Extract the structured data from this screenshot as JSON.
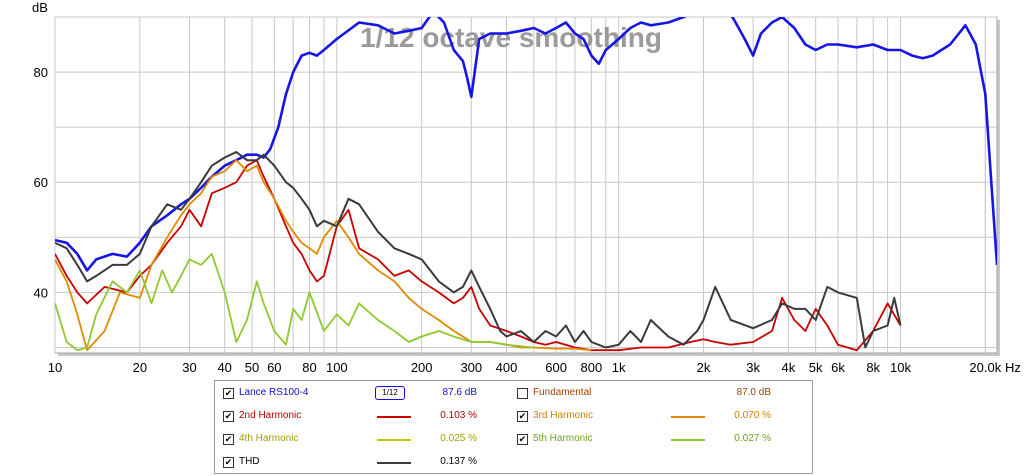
{
  "chart_data": {
    "type": "line",
    "title": "1/12 octave smoothing",
    "ylabel": "dB",
    "xlabel_unit": "Hz",
    "xscale": "log",
    "xlim": [
      10,
      22000
    ],
    "ylim": [
      29,
      90
    ],
    "y_ticks": [
      40,
      60,
      80
    ],
    "x_ticks": [
      {
        "v": 10,
        "t": "10"
      },
      {
        "v": 20,
        "t": "20"
      },
      {
        "v": 30,
        "t": "30"
      },
      {
        "v": 40,
        "t": "40"
      },
      {
        "v": 50,
        "t": "50"
      },
      {
        "v": 60,
        "t": "60"
      },
      {
        "v": 80,
        "t": "80"
      },
      {
        "v": 100,
        "t": "100"
      },
      {
        "v": 200,
        "t": "200"
      },
      {
        "v": 300,
        "t": "300"
      },
      {
        "v": 400,
        "t": "400"
      },
      {
        "v": 600,
        "t": "600"
      },
      {
        "v": 800,
        "t": "800"
      },
      {
        "v": 1000,
        "t": "1k"
      },
      {
        "v": 2000,
        "t": "2k"
      },
      {
        "v": 3000,
        "t": "3k"
      },
      {
        "v": 4000,
        "t": "4k"
      },
      {
        "v": 5000,
        "t": "5k"
      },
      {
        "v": 6000,
        "t": "6k"
      },
      {
        "v": 8000,
        "t": "8k"
      },
      {
        "v": 10000,
        "t": "10k"
      },
      {
        "v": 20000,
        "t": "20.0k"
      }
    ],
    "grid": true,
    "series": [
      {
        "name": "Lance RS100-4",
        "color": "#1515e6",
        "width": 2.6,
        "x": [
          10,
          11,
          12,
          13,
          14,
          16,
          18,
          20,
          22,
          25,
          28,
          30,
          33,
          36,
          40,
          44,
          48,
          52,
          55,
          58,
          62,
          66,
          70,
          75,
          80,
          85,
          90,
          100,
          120,
          140,
          160,
          180,
          200,
          220,
          240,
          260,
          280,
          290,
          300,
          320,
          350,
          400,
          450,
          500,
          550,
          600,
          650,
          700,
          750,
          800,
          850,
          900,
          1000,
          1100,
          1200,
          1300,
          1500,
          1700,
          1900,
          2000,
          2200,
          2400,
          2600,
          2800,
          3000,
          3200,
          3500,
          3800,
          4200,
          4600,
          5000,
          5500,
          6000,
          7000,
          8000,
          9000,
          10000,
          11000,
          12000,
          13000,
          15000,
          17000,
          18500,
          20000,
          21000,
          22000
        ],
        "y": [
          49.5,
          49,
          47,
          44,
          46,
          47,
          46.5,
          49,
          52,
          54,
          56,
          57,
          59,
          61,
          63,
          64,
          65,
          65,
          64.5,
          66,
          70,
          76,
          80,
          83,
          83.5,
          83,
          84,
          86,
          89,
          88.5,
          87,
          87.5,
          88,
          91,
          89,
          84,
          82,
          79,
          75.5,
          86,
          87,
          87,
          87.5,
          88,
          87,
          88,
          89,
          87,
          86,
          83,
          81.5,
          84,
          86,
          88,
          89,
          88.5,
          89,
          90,
          91,
          93,
          93.5,
          92,
          89,
          86,
          83,
          87,
          89,
          90,
          88,
          85,
          84,
          85,
          85,
          84.5,
          85,
          84,
          84,
          83,
          82.5,
          83,
          85,
          88.5,
          85,
          76,
          60,
          45
        ]
      },
      {
        "name": "2nd Harmonic",
        "color": "#c80000",
        "width": 1.8,
        "x": [
          10,
          11,
          12,
          13,
          15,
          18,
          20,
          22,
          25,
          28,
          30,
          33,
          36,
          40,
          44,
          48,
          52,
          55,
          60,
          66,
          70,
          75,
          80,
          85,
          90,
          100,
          110,
          120,
          140,
          160,
          180,
          200,
          230,
          260,
          280,
          300,
          320,
          350,
          400,
          450,
          500,
          550,
          600,
          700,
          800,
          900,
          1000,
          1200,
          1500,
          1800,
          2000,
          2200,
          2500,
          3000,
          3500,
          3800,
          4200,
          4600,
          5000,
          5500,
          6000,
          7000,
          8000,
          9000,
          10000
        ],
        "y": [
          47,
          43,
          40,
          38,
          41,
          40,
          43,
          45,
          49,
          52,
          55,
          52,
          58,
          59,
          60,
          63,
          64,
          61,
          57,
          52,
          49,
          47,
          44,
          42,
          43,
          52,
          55,
          48,
          46,
          43,
          44,
          42,
          40,
          38,
          39,
          41,
          37,
          34,
          33,
          32,
          31,
          30.5,
          31,
          30,
          29.5,
          29.5,
          29.5,
          30,
          30,
          31,
          31.5,
          31,
          30.5,
          31,
          33,
          39,
          35,
          33,
          37,
          34,
          30.5,
          29.5,
          33,
          38,
          34
        ]
      },
      {
        "name": "3rd Harmonic",
        "color": "#e08a00",
        "width": 1.8,
        "x": [
          10,
          11,
          12,
          13,
          15,
          17,
          20,
          22,
          25,
          28,
          30,
          33,
          36,
          40,
          44,
          48,
          52,
          55,
          60,
          66,
          70,
          75,
          80,
          85,
          90,
          100,
          110,
          120,
          140,
          160,
          180,
          200,
          230,
          260,
          280,
          300,
          350,
          400,
          450,
          500,
          600,
          700,
          800
        ],
        "y": [
          46,
          42,
          36,
          29.5,
          33,
          40,
          39,
          45,
          50,
          54,
          56,
          58,
          61,
          62,
          64,
          62,
          63,
          60,
          57,
          53,
          51,
          49,
          48,
          47,
          50,
          53,
          50,
          47,
          44,
          42,
          39,
          37,
          35,
          33,
          32,
          31,
          31,
          30.5,
          30,
          30,
          29.8,
          29.8,
          29.5
        ]
      },
      {
        "name": "4th Harmonic",
        "color": "#c8c800",
        "width": 1.4,
        "x": [],
        "y": []
      },
      {
        "name": "5th Harmonic",
        "color": "#90c830",
        "width": 1.8,
        "x": [
          10,
          11,
          12,
          13,
          14,
          16,
          18,
          20,
          22,
          24,
          26,
          28,
          30,
          33,
          36,
          40,
          44,
          48,
          52,
          55,
          60,
          66,
          70,
          75,
          80,
          90,
          100,
          110,
          120,
          140,
          160,
          180,
          200,
          230,
          260,
          300,
          350,
          400,
          500
        ],
        "y": [
          38,
          31,
          29.5,
          30,
          36,
          42,
          40,
          44,
          38,
          44,
          40,
          43,
          46,
          45,
          47,
          40,
          31,
          35,
          42,
          38,
          33,
          30.5,
          37,
          35,
          40,
          33,
          36,
          34,
          38,
          35,
          33,
          31,
          32,
          33,
          32,
          31,
          31,
          30.5,
          30
        ]
      },
      {
        "name": "THD",
        "color": "#3a3a3a",
        "width": 2.0,
        "x": [
          10,
          11,
          12,
          13,
          14,
          16,
          18,
          20,
          22,
          25,
          28,
          30,
          33,
          36,
          40,
          44,
          48,
          52,
          55,
          60,
          66,
          70,
          75,
          80,
          85,
          90,
          100,
          110,
          120,
          140,
          160,
          180,
          200,
          230,
          260,
          280,
          300,
          320,
          350,
          380,
          400,
          450,
          500,
          550,
          600,
          650,
          700,
          750,
          800,
          900,
          1000,
          1100,
          1200,
          1300,
          1500,
          1700,
          1900,
          2000,
          2200,
          2500,
          3000,
          3500,
          3800,
          4200,
          4600,
          5000,
          5500,
          6000,
          7000,
          7500,
          8000,
          9000,
          9500,
          10000
        ],
        "y": [
          49,
          48,
          45,
          42,
          43,
          45,
          45,
          47,
          52,
          56,
          55,
          57,
          60,
          63,
          64.5,
          65.5,
          64,
          64,
          65,
          63,
          60,
          59,
          57,
          55,
          52,
          53,
          52,
          57,
          56,
          51,
          48,
          47,
          46,
          42,
          40,
          41,
          44,
          41,
          37,
          33,
          32,
          33,
          31,
          33,
          32,
          34,
          31,
          33,
          31,
          30,
          30.5,
          33,
          31,
          35,
          32,
          30.5,
          33,
          35,
          41,
          35,
          33.5,
          35,
          38,
          37,
          37,
          35,
          41,
          40,
          39,
          30,
          33,
          34,
          39,
          34
        ]
      }
    ]
  },
  "legend": {
    "rows": [
      {
        "checked": true,
        "name": "Lance RS100-4",
        "name_color": "#1010c0",
        "smoothing": "1/12",
        "value": "87.6 dB",
        "value_color": "#1010c0",
        "r_checked": false,
        "r_name": "Fundamental",
        "r_name_color": "#a04000",
        "r_value": "87.0 dB",
        "r_value_color": "#a04000"
      },
      {
        "checked": true,
        "name": "2nd Harmonic",
        "name_color": "#b00000",
        "value": "0.103 %",
        "value_color": "#b00000",
        "swatch": "#c80000",
        "r_checked": true,
        "r_name": "3rd Harmonic",
        "r_name_color": "#d08000",
        "r_value": "0.070 %",
        "r_value_color": "#d08000",
        "r_swatch": "#e08a00"
      },
      {
        "checked": true,
        "name": "4th Harmonic",
        "name_color": "#a0a000",
        "value": "0.025 %",
        "value_color": "#a0a000",
        "swatch": "#c8c800",
        "r_checked": true,
        "r_name": "5th Harmonic",
        "r_name_color": "#70a020",
        "r_value": "0.027 %",
        "r_value_color": "#70a020",
        "r_swatch": "#90c830"
      },
      {
        "checked": true,
        "name": "THD",
        "name_color": "#000000",
        "value": "0.137 %",
        "value_color": "#000000",
        "swatch": "#3a3a3a"
      }
    ]
  }
}
